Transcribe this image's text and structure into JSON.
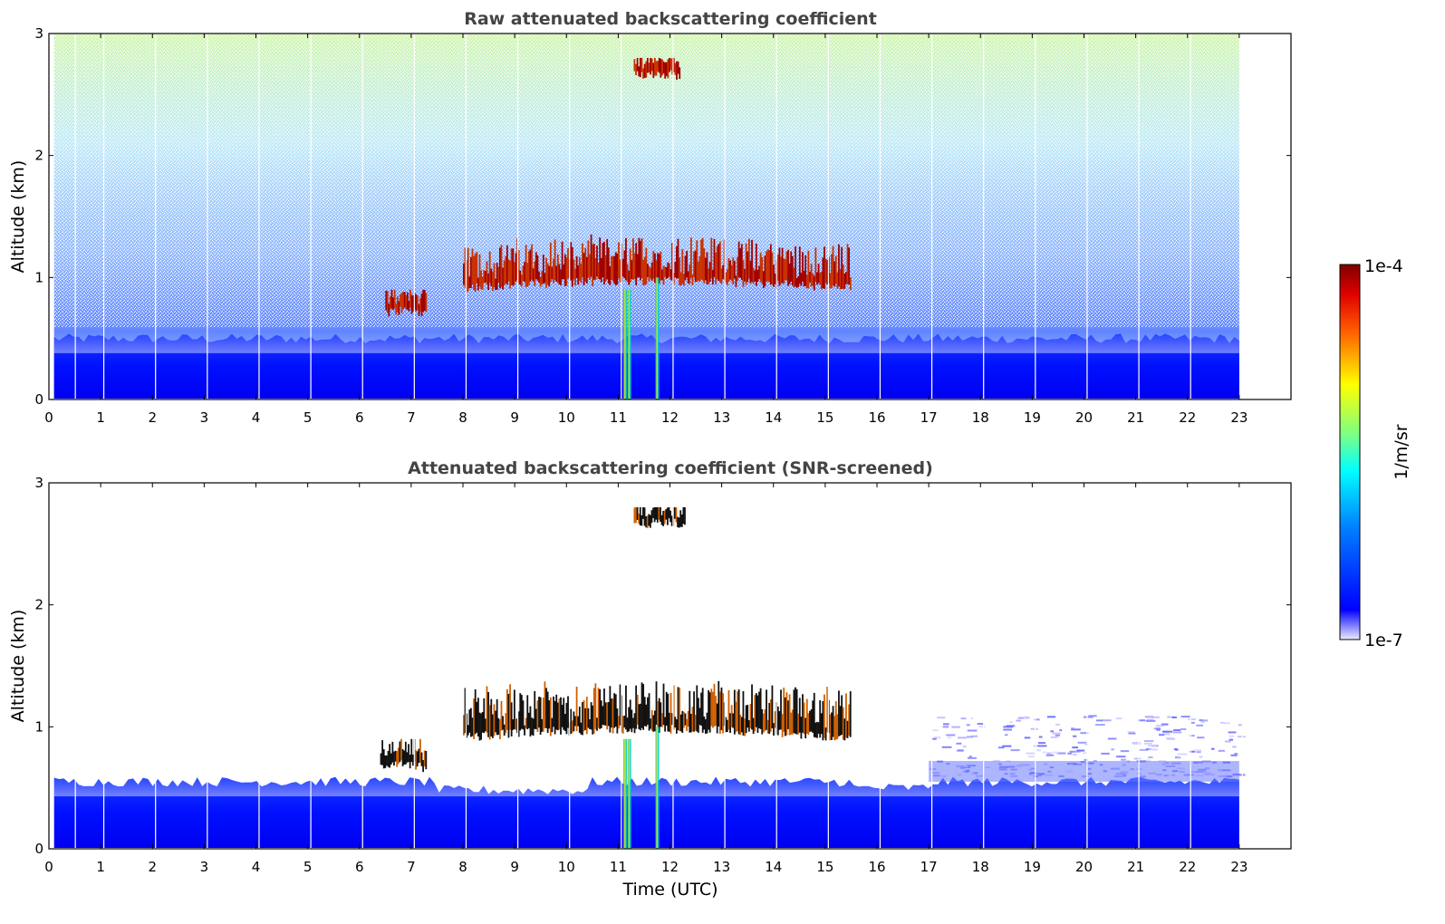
{
  "figure": {
    "xlabel": "Time (UTC)",
    "colorbar": {
      "label": "1/m/sr",
      "tick_top": "1e-4",
      "tick_bottom": "1e-7",
      "scale": "log",
      "colormap": "jet"
    }
  },
  "chart_data": [
    {
      "type": "heatmap",
      "title": "Raw attenuated backscattering coefficient",
      "xlabel": "",
      "ylabel": "Altitude (km)",
      "xlim": [
        0,
        24
      ],
      "ylim": [
        0,
        3
      ],
      "x_ticks": [
        0,
        1,
        2,
        3,
        4,
        5,
        6,
        7,
        8,
        9,
        10,
        11,
        12,
        13,
        14,
        15,
        16,
        17,
        18,
        19,
        20,
        21,
        22,
        23
      ],
      "y_ticks": [
        0,
        1,
        2,
        3
      ],
      "data_extent_x": [
        0.1,
        23
      ],
      "color_range": [
        "1e-7",
        "1e-4"
      ],
      "features": [
        {
          "feature": "boundary layer aerosol",
          "x": [
            0.1,
            23
          ],
          "altitude_top_km": 0.5
        },
        {
          "feature": "cloud layer",
          "x": [
            6.5,
            7.3
          ],
          "altitude_km": [
            0.7,
            0.9
          ]
        },
        {
          "feature": "cloud layer",
          "x": [
            8.0,
            15.5
          ],
          "altitude_km": [
            0.9,
            1.4
          ]
        },
        {
          "feature": "cloud layer",
          "x": [
            11.3,
            12.2
          ],
          "altitude_km": [
            2.65,
            2.8
          ]
        }
      ]
    },
    {
      "type": "heatmap",
      "title": "Attenuated backscattering coefficient (SNR-screened)",
      "xlabel": "Time (UTC)",
      "ylabel": "Altitude (km)",
      "xlim": [
        0,
        24
      ],
      "ylim": [
        0,
        3
      ],
      "x_ticks": [
        0,
        1,
        2,
        3,
        4,
        5,
        6,
        7,
        8,
        9,
        10,
        11,
        12,
        13,
        14,
        15,
        16,
        17,
        18,
        19,
        20,
        21,
        22,
        23
      ],
      "y_ticks": [
        0,
        1,
        2,
        3
      ],
      "data_extent_x": [
        0.1,
        23
      ],
      "color_range": [
        "1e-7",
        "1e-4"
      ],
      "features": [
        {
          "feature": "boundary layer aerosol",
          "x": [
            0.1,
            23
          ],
          "altitude_top_km": 0.55
        },
        {
          "feature": "aerosol layer",
          "x": [
            17.0,
            23.0
          ],
          "altitude_km": [
            0.6,
            1.1
          ]
        },
        {
          "feature": "cloud layer",
          "x": [
            6.4,
            7.3
          ],
          "altitude_km": [
            0.65,
            0.9
          ]
        },
        {
          "feature": "cloud layer",
          "x": [
            8.0,
            15.5
          ],
          "altitude_km": [
            0.9,
            1.45
          ]
        },
        {
          "feature": "cloud layer",
          "x": [
            11.3,
            12.3
          ],
          "altitude_km": [
            2.65,
            2.8
          ]
        }
      ]
    }
  ]
}
